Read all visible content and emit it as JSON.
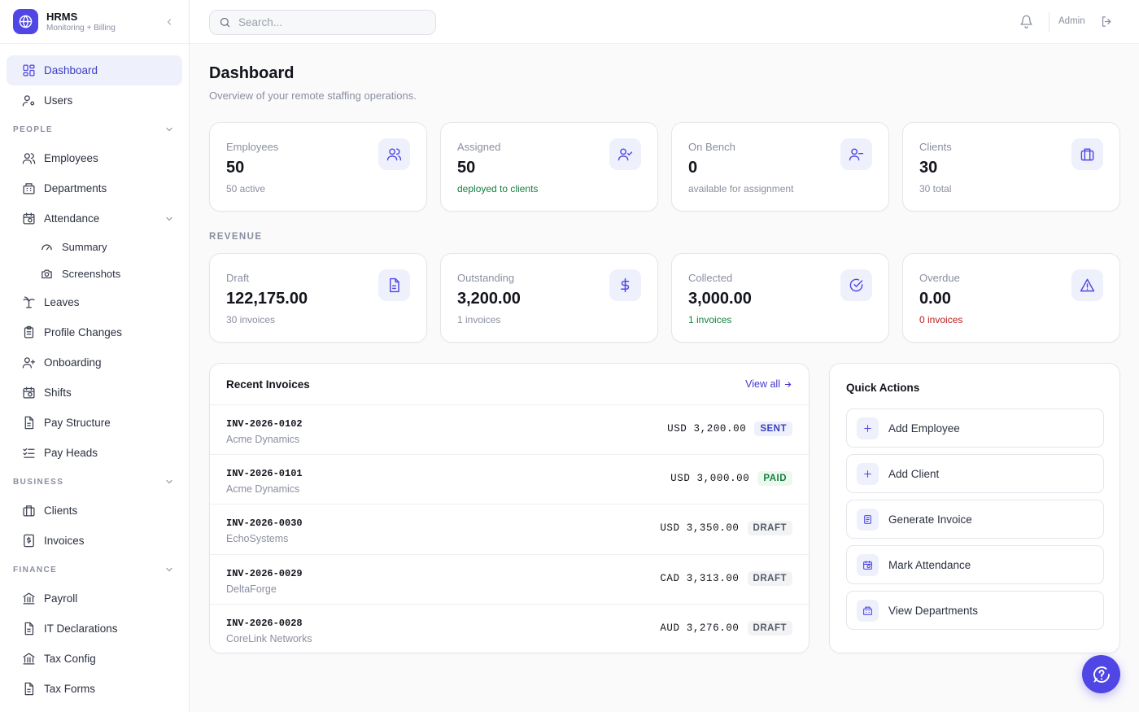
{
  "brand": {
    "title": "HRMS",
    "subtitle": "Monitoring + Billing",
    "icon": "globe-icon"
  },
  "sidebar": {
    "main_items": [
      {
        "label": "Dashboard",
        "icon": "layout-grid-icon",
        "active": true
      },
      {
        "label": "Users",
        "icon": "user-gear-icon"
      }
    ],
    "people": {
      "label": "PEOPLE",
      "items": [
        {
          "label": "Employees",
          "icon": "users-icon"
        },
        {
          "label": "Departments",
          "icon": "building-icon"
        },
        {
          "label": "Attendance",
          "icon": "calendar-clock-icon",
          "expanded": true
        },
        {
          "label": "Summary",
          "icon": "gauge-icon",
          "sub": true
        },
        {
          "label": "Screenshots",
          "icon": "camera-icon",
          "sub": true
        },
        {
          "label": "Leaves",
          "icon": "palm-tree-icon"
        },
        {
          "label": "Profile Changes",
          "icon": "clipboard-icon"
        },
        {
          "label": "Onboarding",
          "icon": "user-plus-icon"
        },
        {
          "label": "Shifts",
          "icon": "calendar-clock-icon"
        },
        {
          "label": "Pay Structure",
          "icon": "file-text-icon"
        },
        {
          "label": "Pay Heads",
          "icon": "list-check-icon"
        }
      ]
    },
    "business": {
      "label": "BUSINESS",
      "items": [
        {
          "label": "Clients",
          "icon": "briefcase-icon"
        },
        {
          "label": "Invoices",
          "icon": "receipt-dollar-icon"
        }
      ]
    },
    "finance": {
      "label": "FINANCE",
      "items": [
        {
          "label": "Payroll",
          "icon": "bank-icon"
        },
        {
          "label": "IT Declarations",
          "icon": "file-text-icon"
        },
        {
          "label": "Tax Config",
          "icon": "bank-icon"
        },
        {
          "label": "Tax Forms",
          "icon": "file-text-icon"
        }
      ]
    }
  },
  "topbar": {
    "search_placeholder": "Search...",
    "user_label": "Admin"
  },
  "page": {
    "title": "Dashboard",
    "subtitle": "Overview of your remote staffing operations."
  },
  "stats": [
    {
      "label": "Employees",
      "value": "50",
      "foot": "50 active",
      "foot_color": "muted",
      "icon": "users-icon"
    },
    {
      "label": "Assigned",
      "value": "50",
      "foot": "deployed to clients",
      "foot_color": "green",
      "icon": "user-check-icon"
    },
    {
      "label": "On Bench",
      "value": "0",
      "foot": "available for assignment",
      "foot_color": "muted",
      "icon": "user-minus-icon"
    },
    {
      "label": "Clients",
      "value": "30",
      "foot": "30 total",
      "foot_color": "muted",
      "icon": "briefcase-icon"
    }
  ],
  "revenue": {
    "label": "REVENUE",
    "stats": [
      {
        "label": "Draft",
        "value": "122,175.00",
        "foot": "30 invoices",
        "foot_color": "muted",
        "icon": "file-text-icon"
      },
      {
        "label": "Outstanding",
        "value": "3,200.00",
        "foot": "1 invoices",
        "foot_color": "muted",
        "icon": "dollar-icon"
      },
      {
        "label": "Collected",
        "value": "3,000.00",
        "foot": "1 invoices",
        "foot_color": "green",
        "icon": "check-circle-icon"
      },
      {
        "label": "Overdue",
        "value": "0.00",
        "foot": "0 invoices",
        "foot_color": "red",
        "icon": "alert-triangle-icon"
      }
    ]
  },
  "recent_invoices": {
    "title": "Recent Invoices",
    "view_all": "View all",
    "rows": [
      {
        "number": "INV-2026-0102",
        "client": "Acme Dynamics",
        "amount": "USD 3,200.00",
        "status": "SENT"
      },
      {
        "number": "INV-2026-0101",
        "client": "Acme Dynamics",
        "amount": "USD 3,000.00",
        "status": "PAID"
      },
      {
        "number": "INV-2026-0030",
        "client": "EchoSystems",
        "amount": "USD 3,350.00",
        "status": "DRAFT"
      },
      {
        "number": "INV-2026-0029",
        "client": "DeltaForge",
        "amount": "CAD 3,313.00",
        "status": "DRAFT"
      },
      {
        "number": "INV-2026-0028",
        "client": "CoreLink Networks",
        "amount": "AUD 3,276.00",
        "status": "DRAFT"
      }
    ]
  },
  "quick_actions": {
    "title": "Quick Actions",
    "items": [
      {
        "label": "Add Employee",
        "icon": "plus-icon"
      },
      {
        "label": "Add Client",
        "icon": "plus-icon"
      },
      {
        "label": "Generate Invoice",
        "icon": "receipt-icon"
      },
      {
        "label": "Mark Attendance",
        "icon": "calendar-clock-icon"
      },
      {
        "label": "View Departments",
        "icon": "building-icon"
      }
    ]
  },
  "colors": {
    "accent": "#4f46e5",
    "accent_soft": "#eef0fb",
    "green": "#15803d",
    "red": "#b91c1c"
  }
}
